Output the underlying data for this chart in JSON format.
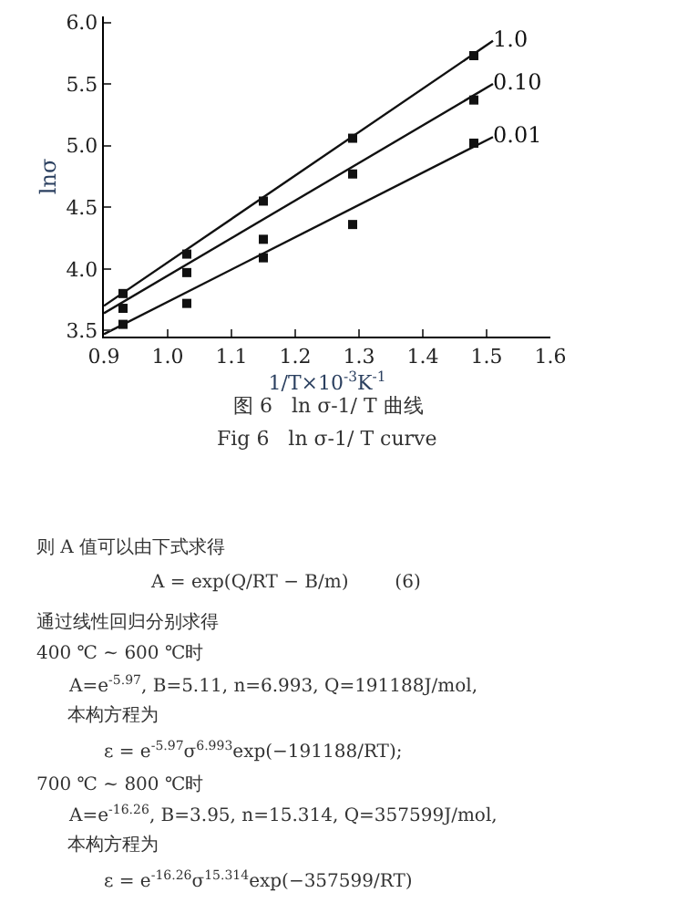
{
  "chart_data": {
    "type": "line",
    "xlabel": "1/T×10$^{-3}$K$^{-1}$",
    "ylabel": "lnσ",
    "xlim": [
      0.9,
      1.6
    ],
    "ylim": [
      3.45,
      6.05
    ],
    "xticks": [
      0.9,
      {
        "value": 1.0,
        "label": "1.0"
      },
      1.1,
      1.2,
      1.3,
      1.4,
      1.5,
      1.6
    ],
    "yticks": [
      3.5,
      {
        "value": 4.0,
        "label": "4.0"
      },
      4.5,
      {
        "value": 5.0,
        "label": "5.0"
      },
      5.5,
      {
        "value": 6.0,
        "label": "6.0"
      }
    ],
    "series": [
      {
        "name": "1.0",
        "color": "#111111",
        "marker": "none",
        "x": [
          0.9,
          1.51
        ],
        "values": [
          3.7,
          5.85
        ]
      },
      {
        "name": "0.10",
        "color": "#111111",
        "marker": "none",
        "x": [
          0.9,
          1.51
        ],
        "values": [
          3.64,
          5.5
        ]
      },
      {
        "name": "0.01",
        "color": "#111111",
        "marker": "none",
        "x": [
          0.9,
          1.51
        ],
        "values": [
          3.47,
          5.07
        ]
      },
      {
        "type": "scatter",
        "marker": "square",
        "color": "#111111",
        "x": [
          0.93,
          1.03,
          1.15,
          1.29,
          1.48
        ],
        "values": [
          3.8,
          4.12,
          4.55,
          5.06,
          5.73
        ]
      },
      {
        "type": "scatter",
        "marker": "square",
        "color": "#111111",
        "x": [
          0.93,
          1.03,
          1.15,
          1.29,
          1.48
        ],
        "values": [
          3.68,
          3.97,
          4.24,
          4.77,
          5.37
        ]
      },
      {
        "type": "scatter",
        "marker": "square",
        "color": "#111111",
        "x": [
          0.93,
          1.03,
          1.15,
          1.29,
          1.48
        ],
        "values": [
          3.55,
          3.72,
          4.09,
          4.36,
          5.02
        ]
      }
    ],
    "annotations": [
      "图 6   ln σ-1/ T 曲线",
      "Fig 6   ln σ-1/ T curve",
      "则 A 值可以由下式求得",
      "A = exp(Q/RT − B/m)        (6)",
      "通过线性回归分别求得",
      "400 ℃ ~ 600 ℃时",
      "A=e$^{-5.97}$, B=5.11, n=6.993, Q=191188J/mol,",
      "本构方程为",
      "ε = e$^{-5.97}$σ$^{6.993}$exp(−191188/RT);",
      "700 ℃ ~ 800 ℃时",
      "A=e$^{-16.26}$, B=3.95, n=15.314, Q=357599J/mol,",
      "本构方程为",
      "ε = e$^{-16.26}$σ$^{15.314}$exp(−357599/RT)"
    ]
  }
}
